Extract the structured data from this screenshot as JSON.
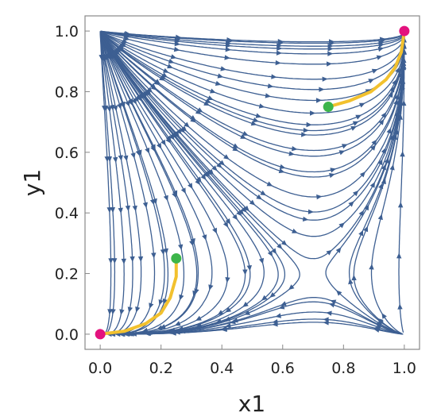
{
  "chart_data": {
    "type": "streamplot",
    "title": "",
    "xlabel": "x1",
    "ylabel": "y1",
    "xlim": [
      -0.05,
      1.05
    ],
    "ylim": [
      -0.05,
      1.05
    ],
    "xticks": [
      "0.0",
      "0.2",
      "0.4",
      "0.6",
      "0.8",
      "1.0"
    ],
    "yticks": [
      "0.0",
      "0.2",
      "0.4",
      "0.6",
      "0.8",
      "1.0"
    ],
    "grid": false,
    "colors": {
      "stream": "#3d5f92",
      "trajectory": "#f2c12e",
      "start_point": "#3cb54a",
      "end_point": "#e3127e",
      "frame": "#888888"
    },
    "saddle_point": {
      "x": 0.7,
      "y": 0.2
    },
    "trajectories": [
      {
        "start": {
          "x": 0.25,
          "y": 0.25
        },
        "end": {
          "x": 0.0,
          "y": 0.0
        },
        "points": [
          [
            0.25,
            0.25
          ],
          [
            0.25,
            0.19
          ],
          [
            0.23,
            0.12
          ],
          [
            0.2,
            0.07
          ],
          [
            0.15,
            0.035
          ],
          [
            0.08,
            0.01
          ],
          [
            0.0,
            0.0
          ]
        ]
      },
      {
        "start": {
          "x": 0.75,
          "y": 0.75
        },
        "end": {
          "x": 1.0,
          "y": 1.0
        },
        "points": [
          [
            0.75,
            0.75
          ],
          [
            0.82,
            0.77
          ],
          [
            0.89,
            0.8
          ],
          [
            0.94,
            0.84
          ],
          [
            0.97,
            0.88
          ],
          [
            0.99,
            0.93
          ],
          [
            1.0,
            1.0
          ]
        ]
      }
    ],
    "markers": [
      {
        "x": 0.0,
        "y": 0.0,
        "role": "end"
      },
      {
        "x": 0.25,
        "y": 0.25,
        "role": "start"
      },
      {
        "x": 0.75,
        "y": 0.75,
        "role": "start"
      },
      {
        "x": 1.0,
        "y": 1.0,
        "role": "end"
      }
    ]
  }
}
